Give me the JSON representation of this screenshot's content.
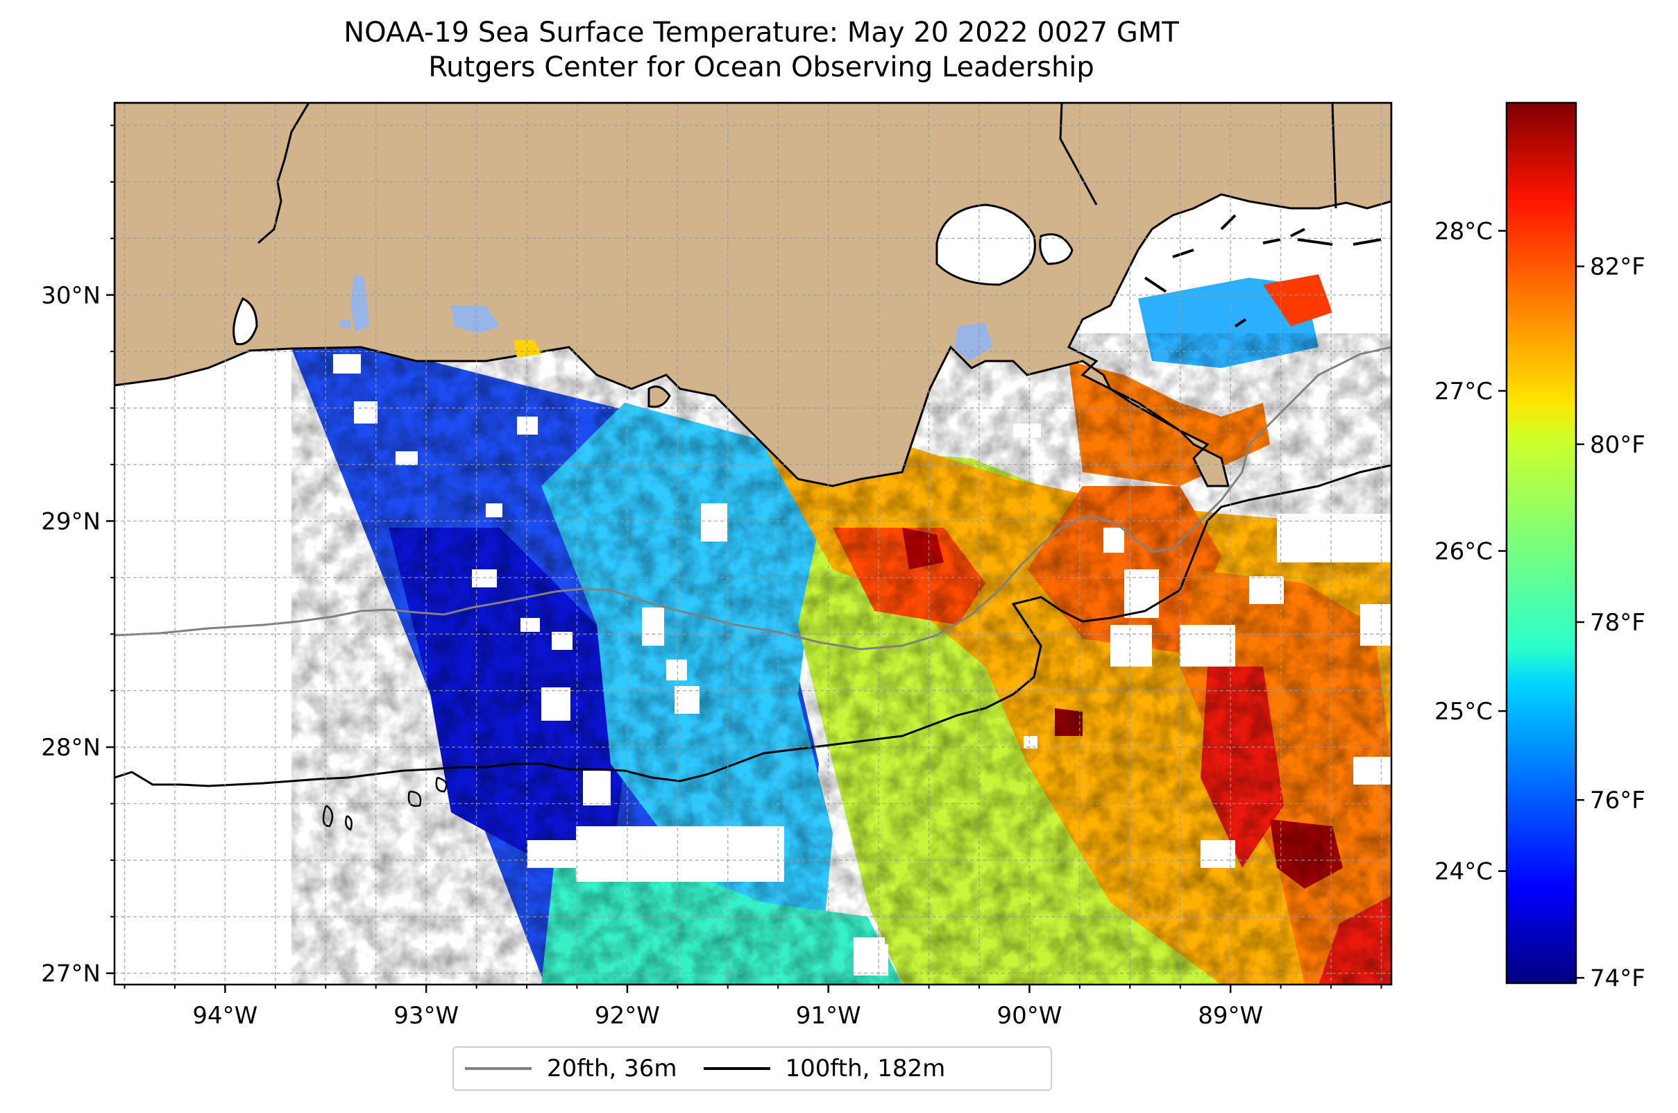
{
  "title": {
    "line1": "NOAA-19 Sea Surface Temperature: May 20 2022 0027 GMT",
    "line2": "Rutgers Center for Ocean Observing Leadership"
  },
  "map": {
    "land_color": "#d2b48c",
    "lon_range": [
      -94.55,
      -88.2
    ],
    "lat_range": [
      26.95,
      30.85
    ],
    "lon_ticks": [
      {
        "value": -94,
        "label": "94°W"
      },
      {
        "value": -93,
        "label": "93°W"
      },
      {
        "value": -92,
        "label": "92°W"
      },
      {
        "value": -91,
        "label": "91°W"
      },
      {
        "value": -90,
        "label": "90°W"
      },
      {
        "value": -89,
        "label": "89°W"
      }
    ],
    "lat_ticks": [
      {
        "value": 27,
        "label": "27°N"
      },
      {
        "value": 28,
        "label": "28°N"
      },
      {
        "value": 29,
        "label": "29°N"
      },
      {
        "value": 30,
        "label": "30°N"
      }
    ],
    "gridlines": true
  },
  "colorbar": {
    "colormap": "jet",
    "celsius_range": [
      23.3,
      28.8
    ],
    "celsius_ticks": [
      {
        "value": 24,
        "label": "24°C"
      },
      {
        "value": 25,
        "label": "25°C"
      },
      {
        "value": 26,
        "label": "26°C"
      },
      {
        "value": 27,
        "label": "27°C"
      },
      {
        "value": 28,
        "label": "28°C"
      }
    ],
    "fahrenheit_ticks": [
      {
        "value": 74,
        "label": "74°F"
      },
      {
        "value": 76,
        "label": "76°F"
      },
      {
        "value": 78,
        "label": "78°F"
      },
      {
        "value": 80,
        "label": "80°F"
      },
      {
        "value": 82,
        "label": "82°F"
      }
    ]
  },
  "legend": {
    "placement": "bottom-center",
    "entries": [
      {
        "label": "20fth, 36m",
        "color": "#808080"
      },
      {
        "label": "100fth, 182m",
        "color": "#000000"
      }
    ]
  }
}
